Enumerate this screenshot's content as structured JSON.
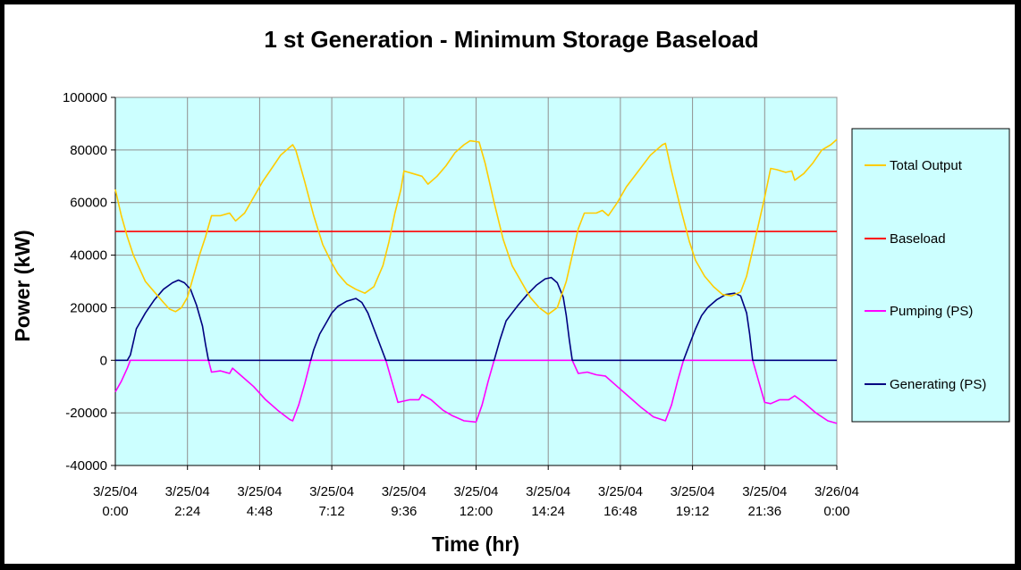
{
  "chart_data": {
    "type": "line",
    "title": "1 st Generation - Minimum Storage Baseload",
    "xlabel": "Time (hr)",
    "ylabel": "Power (kW)",
    "xlim": [
      0,
      24
    ],
    "ylim": [
      -40000,
      100000
    ],
    "y_ticks": [
      100000,
      80000,
      60000,
      40000,
      20000,
      0,
      -20000,
      -40000
    ],
    "y_tick_labels": [
      "100000",
      "80000",
      "60000",
      "40000",
      "20000",
      "0",
      "-20000",
      "-40000"
    ],
    "x_ticks": [
      0,
      2.4,
      4.8,
      7.2,
      9.6,
      12,
      14.4,
      16.8,
      19.2,
      21.6,
      24
    ],
    "x_tick_labels": [
      [
        "3/25/04",
        "0:00"
      ],
      [
        "3/25/04",
        "2:24"
      ],
      [
        "3/25/04",
        "4:48"
      ],
      [
        "3/25/04",
        "7:12"
      ],
      [
        "3/25/04",
        "9:36"
      ],
      [
        "3/25/04",
        "12:00"
      ],
      [
        "3/25/04",
        "14:24"
      ],
      [
        "3/25/04",
        "16:48"
      ],
      [
        "3/25/04",
        "19:12"
      ],
      [
        "3/25/04",
        "21:36"
      ],
      [
        "3/26/04",
        "0:00"
      ]
    ],
    "grid": true,
    "plot_background": "#ccffff",
    "legend_position": "right",
    "series": [
      {
        "name": "Total Output",
        "color": "#ffcc00",
        "points": [
          [
            0,
            65000
          ],
          [
            0.2,
            55000
          ],
          [
            0.4,
            47000
          ],
          [
            0.6,
            40000
          ],
          [
            0.8,
            35000
          ],
          [
            1.0,
            30000
          ],
          [
            1.3,
            26000
          ],
          [
            1.6,
            22000
          ],
          [
            1.8,
            19500
          ],
          [
            2.0,
            18500
          ],
          [
            2.2,
            20000
          ],
          [
            2.4,
            24000
          ],
          [
            2.6,
            32000
          ],
          [
            2.8,
            40000
          ],
          [
            3.0,
            47000
          ],
          [
            3.2,
            55000
          ],
          [
            3.5,
            55000
          ],
          [
            3.8,
            56000
          ],
          [
            4.0,
            53000
          ],
          [
            4.3,
            56000
          ],
          [
            4.6,
            62000
          ],
          [
            4.9,
            68000
          ],
          [
            5.2,
            73000
          ],
          [
            5.5,
            78000
          ],
          [
            5.8,
            81000
          ],
          [
            5.9,
            82000
          ],
          [
            6.0,
            80000
          ],
          [
            6.3,
            68000
          ],
          [
            6.6,
            55000
          ],
          [
            6.9,
            44000
          ],
          [
            7.2,
            37000
          ],
          [
            7.4,
            33000
          ],
          [
            7.7,
            29000
          ],
          [
            8.0,
            27000
          ],
          [
            8.3,
            25500
          ],
          [
            8.6,
            28000
          ],
          [
            8.9,
            36000
          ],
          [
            9.1,
            45000
          ],
          [
            9.3,
            56000
          ],
          [
            9.5,
            65000
          ],
          [
            9.6,
            72000
          ],
          [
            9.9,
            71000
          ],
          [
            10.2,
            70000
          ],
          [
            10.4,
            67000
          ],
          [
            10.7,
            70000
          ],
          [
            11.0,
            74000
          ],
          [
            11.3,
            79000
          ],
          [
            11.6,
            82000
          ],
          [
            11.8,
            83500
          ],
          [
            12.1,
            83000
          ],
          [
            12.3,
            75000
          ],
          [
            12.6,
            60000
          ],
          [
            12.9,
            46000
          ],
          [
            13.2,
            36000
          ],
          [
            13.5,
            30000
          ],
          [
            13.8,
            24000
          ],
          [
            14.1,
            20000
          ],
          [
            14.4,
            17500
          ],
          [
            14.7,
            20000
          ],
          [
            15.0,
            30000
          ],
          [
            15.2,
            40000
          ],
          [
            15.4,
            50000
          ],
          [
            15.6,
            56000
          ],
          [
            16.0,
            56000
          ],
          [
            16.2,
            57000
          ],
          [
            16.4,
            55000
          ],
          [
            16.7,
            60000
          ],
          [
            17.0,
            66000
          ],
          [
            17.4,
            72000
          ],
          [
            17.8,
            78000
          ],
          [
            18.2,
            82000
          ],
          [
            18.3,
            82500
          ],
          [
            18.5,
            72000
          ],
          [
            18.8,
            58000
          ],
          [
            19.1,
            45000
          ],
          [
            19.3,
            38000
          ],
          [
            19.6,
            32000
          ],
          [
            19.9,
            28000
          ],
          [
            20.2,
            25000
          ],
          [
            20.5,
            24500
          ],
          [
            20.8,
            26000
          ],
          [
            21.0,
            32000
          ],
          [
            21.2,
            42000
          ],
          [
            21.4,
            52000
          ],
          [
            21.6,
            62000
          ],
          [
            21.8,
            73000
          ],
          [
            22.0,
            72500
          ],
          [
            22.3,
            71500
          ],
          [
            22.5,
            72000
          ],
          [
            22.6,
            68500
          ],
          [
            22.9,
            71000
          ],
          [
            23.2,
            75000
          ],
          [
            23.5,
            80000
          ],
          [
            23.8,
            82000
          ],
          [
            24.0,
            84000
          ]
        ]
      },
      {
        "name": "Baseload",
        "color": "#ff0000",
        "points": [
          [
            0,
            49000
          ],
          [
            24,
            49000
          ]
        ]
      },
      {
        "name": "Pumping (PS)",
        "color": "#ff00ff",
        "points": [
          [
            0,
            -12000
          ],
          [
            0.2,
            -8000
          ],
          [
            0.4,
            -3000
          ],
          [
            0.5,
            0
          ],
          [
            3.1,
            0
          ],
          [
            3.2,
            -4500
          ],
          [
            3.5,
            -4000
          ],
          [
            3.8,
            -5000
          ],
          [
            3.9,
            -3000
          ],
          [
            4.2,
            -6000
          ],
          [
            4.6,
            -10000
          ],
          [
            5.0,
            -15000
          ],
          [
            5.4,
            -19000
          ],
          [
            5.8,
            -22500
          ],
          [
            5.9,
            -23000
          ],
          [
            6.1,
            -17000
          ],
          [
            6.3,
            -9000
          ],
          [
            6.5,
            0
          ],
          [
            9.0,
            0
          ],
          [
            9.2,
            -8000
          ],
          [
            9.4,
            -16000
          ],
          [
            9.8,
            -15000
          ],
          [
            10.1,
            -15000
          ],
          [
            10.2,
            -13000
          ],
          [
            10.5,
            -15000
          ],
          [
            10.9,
            -19000
          ],
          [
            11.2,
            -21000
          ],
          [
            11.6,
            -23000
          ],
          [
            12.0,
            -23500
          ],
          [
            12.2,
            -17000
          ],
          [
            12.4,
            -8000
          ],
          [
            12.6,
            0
          ],
          [
            15.2,
            0
          ],
          [
            15.4,
            -5000
          ],
          [
            15.7,
            -4500
          ],
          [
            16.0,
            -5500
          ],
          [
            16.3,
            -6000
          ],
          [
            16.7,
            -10000
          ],
          [
            17.1,
            -14000
          ],
          [
            17.5,
            -18000
          ],
          [
            17.9,
            -21500
          ],
          [
            18.3,
            -23000
          ],
          [
            18.5,
            -17000
          ],
          [
            18.7,
            -8000
          ],
          [
            18.9,
            0
          ],
          [
            21.2,
            0
          ],
          [
            21.4,
            -8000
          ],
          [
            21.6,
            -16000
          ],
          [
            21.8,
            -16500
          ],
          [
            22.1,
            -15000
          ],
          [
            22.4,
            -15000
          ],
          [
            22.6,
            -13500
          ],
          [
            22.9,
            -16000
          ],
          [
            23.3,
            -20000
          ],
          [
            23.7,
            -23000
          ],
          [
            24.0,
            -24000
          ]
        ]
      },
      {
        "name": "Generating (PS)",
        "color": "#000080",
        "points": [
          [
            0,
            0
          ],
          [
            0.4,
            0
          ],
          [
            0.5,
            2000
          ],
          [
            0.6,
            7000
          ],
          [
            0.7,
            12000
          ],
          [
            0.8,
            14000
          ],
          [
            1.0,
            18000
          ],
          [
            1.3,
            23000
          ],
          [
            1.6,
            27000
          ],
          [
            1.9,
            29500
          ],
          [
            2.1,
            30500
          ],
          [
            2.3,
            29500
          ],
          [
            2.5,
            27000
          ],
          [
            2.7,
            21000
          ],
          [
            2.9,
            13000
          ],
          [
            3.0,
            6000
          ],
          [
            3.1,
            0
          ],
          [
            6.5,
            0
          ],
          [
            6.6,
            4000
          ],
          [
            6.8,
            10000
          ],
          [
            7.0,
            14000
          ],
          [
            7.2,
            18000
          ],
          [
            7.4,
            20500
          ],
          [
            7.7,
            22500
          ],
          [
            8.0,
            23500
          ],
          [
            8.2,
            22000
          ],
          [
            8.4,
            18000
          ],
          [
            8.6,
            12000
          ],
          [
            8.8,
            6000
          ],
          [
            9.0,
            0
          ],
          [
            12.6,
            0
          ],
          [
            12.8,
            8000
          ],
          [
            13.0,
            15000
          ],
          [
            13.2,
            18000
          ],
          [
            13.4,
            21000
          ],
          [
            13.7,
            25000
          ],
          [
            14.0,
            28500
          ],
          [
            14.3,
            31000
          ],
          [
            14.5,
            31500
          ],
          [
            14.7,
            29500
          ],
          [
            14.9,
            24000
          ],
          [
            15.0,
            17000
          ],
          [
            15.1,
            8000
          ],
          [
            15.2,
            0
          ],
          [
            18.9,
            0
          ],
          [
            19.1,
            6000
          ],
          [
            19.3,
            12000
          ],
          [
            19.5,
            17000
          ],
          [
            19.7,
            20000
          ],
          [
            20.0,
            23000
          ],
          [
            20.3,
            25000
          ],
          [
            20.6,
            25500
          ],
          [
            20.8,
            24500
          ],
          [
            21.0,
            18000
          ],
          [
            21.1,
            10000
          ],
          [
            21.2,
            0
          ],
          [
            24.0,
            0
          ]
        ]
      }
    ]
  }
}
